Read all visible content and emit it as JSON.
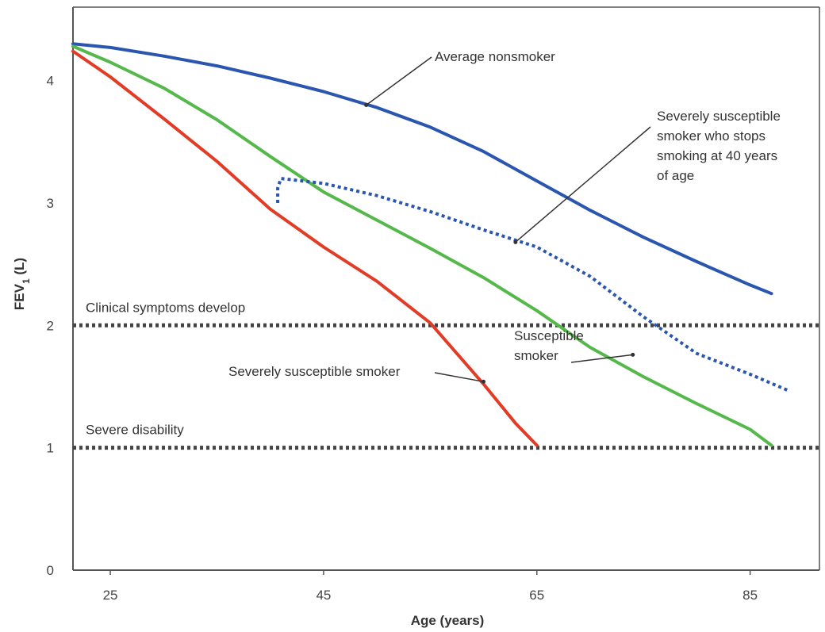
{
  "chart_data": {
    "type": "line",
    "xlabel": "Age (years)",
    "ylabel_main": "FEV",
    "ylabel_sub": "1",
    "ylabel_unit": " (L)",
    "xlim": [
      21.5,
      91.5
    ],
    "ylim": [
      0,
      4.6
    ],
    "x_ticks": [
      25,
      45,
      65,
      85
    ],
    "y_ticks": [
      0,
      1,
      2,
      3,
      4
    ],
    "grid": false,
    "series": [
      {
        "name": "Average nonsmoker",
        "color": "#2a56b0",
        "style": "solid",
        "x": [
          21.5,
          25,
          30,
          35,
          40,
          45,
          50,
          55,
          60,
          65,
          70,
          75,
          80,
          85,
          87
        ],
        "y": [
          4.3,
          4.27,
          4.2,
          4.12,
          4.02,
          3.91,
          3.78,
          3.62,
          3.42,
          3.18,
          2.94,
          2.72,
          2.52,
          2.33,
          2.26
        ]
      },
      {
        "name": "Susceptible smoker",
        "color": "#55b84a",
        "style": "solid",
        "x": [
          21.5,
          25,
          30,
          35,
          40,
          45,
          50,
          55,
          60,
          65,
          70,
          75,
          80,
          85,
          87
        ],
        "y": [
          4.28,
          4.15,
          3.94,
          3.68,
          3.38,
          3.09,
          2.86,
          2.63,
          2.39,
          2.12,
          1.82,
          1.58,
          1.36,
          1.15,
          1.02
        ]
      },
      {
        "name": "Severely susceptible smoker",
        "color": "#e23b26",
        "style": "solid",
        "x": [
          21.5,
          25,
          30,
          35,
          40,
          45,
          50,
          55,
          60,
          63,
          65
        ],
        "y": [
          4.24,
          4.03,
          3.69,
          3.34,
          2.95,
          2.64,
          2.36,
          2.02,
          1.52,
          1.2,
          1.02
        ]
      },
      {
        "name": "Severely susceptible smoker who stops smoking at 40 years of age",
        "color": "#2a56b0",
        "style": "dotted",
        "x": [
          40.7,
          40.7,
          41,
          45,
          50,
          55,
          60,
          65,
          70,
          75,
          80,
          85,
          88.5
        ],
        "y": [
          3.0,
          3.12,
          3.2,
          3.16,
          3.06,
          2.93,
          2.78,
          2.64,
          2.4,
          2.07,
          1.77,
          1.6,
          1.47
        ]
      }
    ],
    "reference_lines": [
      {
        "y": 2,
        "label": "Clinical symptoms develop"
      },
      {
        "y": 1,
        "label": "Severe disability"
      }
    ],
    "annotations": [
      {
        "lines": [
          "Average nonsmoker"
        ],
        "point_x": 49,
        "point_y": 3.8
      },
      {
        "lines": [
          "Severely susceptible",
          "smoker who stops",
          "smoking at 40 years",
          "of age"
        ],
        "point_x": 63,
        "point_y": 2.68
      },
      {
        "lines": [
          "Susceptible",
          "smoker"
        ],
        "point_x": 74,
        "point_y": 1.76
      },
      {
        "lines": [
          "Severely susceptible smoker"
        ],
        "point_x": 60,
        "point_y": 1.54
      }
    ]
  }
}
